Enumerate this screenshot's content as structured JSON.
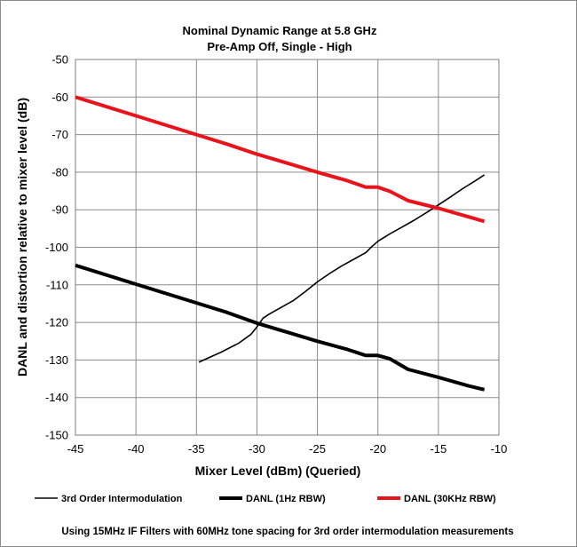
{
  "chart_data": {
    "type": "line",
    "title": "Nominal Dynamic Range at 5.8 GHz",
    "subtitle": "Pre-Amp Off, Single - High",
    "xlabel": "Mixer Level (dBm) (Queried)",
    "ylabel": "DANL and distortion relative to mixer level (dB)",
    "xlim": [
      -45,
      -10
    ],
    "ylim": [
      -150,
      -50
    ],
    "xticks": [
      -45,
      -40,
      -35,
      -30,
      -25,
      -20,
      -15,
      -10
    ],
    "yticks": [
      -50,
      -60,
      -70,
      -80,
      -90,
      -100,
      -110,
      -120,
      -130,
      -140,
      -150
    ],
    "grid": true,
    "legend_position": "bottom",
    "series": [
      {
        "name": "3rd Order Intermodulation",
        "color": "#000000",
        "line_weight": "thin",
        "x": [
          -34.8,
          -33,
          -31.5,
          -30.5,
          -30,
          -29.5,
          -29,
          -28,
          -27,
          -26,
          -25,
          -24,
          -23,
          -22,
          -21,
          -20.5,
          -20,
          -19,
          -18,
          -17,
          -16,
          -15,
          -14,
          -13,
          -12,
          -11.2
        ],
        "y": [
          -130.6,
          -128.0,
          -125.5,
          -123.2,
          -121.2,
          -118.9,
          -117.8,
          -116.0,
          -114.2,
          -111.8,
          -109.2,
          -107.0,
          -105.0,
          -103.2,
          -101.4,
          -99.8,
          -98.4,
          -96.4,
          -94.6,
          -92.8,
          -90.8,
          -88.7,
          -86.6,
          -84.4,
          -82.4,
          -80.7
        ]
      },
      {
        "name": "DANL (1Hz RBW)",
        "color": "#000000",
        "line_weight": "thick",
        "x": [
          -45,
          -40,
          -35,
          -32.5,
          -30,
          -27.5,
          -25,
          -22.5,
          -21,
          -20,
          -19,
          -17.5,
          -15,
          -12.5,
          -11.2
        ],
        "y": [
          -104.8,
          -109.8,
          -114.8,
          -117.3,
          -120.2,
          -122.6,
          -125.0,
          -127.2,
          -128.8,
          -128.8,
          -129.7,
          -132.5,
          -134.6,
          -136.9,
          -137.9
        ]
      },
      {
        "name": "DANL (30KHz RBW)",
        "color": "#e8131b",
        "line_weight": "thick",
        "x": [
          -45,
          -40,
          -35,
          -32.5,
          -30,
          -27.5,
          -25,
          -22.5,
          -21,
          -20,
          -19,
          -17.5,
          -15,
          -12.5,
          -11.2
        ],
        "y": [
          -60.0,
          -65.0,
          -70.0,
          -72.5,
          -75.2,
          -77.6,
          -80.0,
          -82.3,
          -84.0,
          -84.0,
          -85.1,
          -87.6,
          -89.6,
          -91.9,
          -93.1
        ]
      }
    ]
  },
  "footnote": "Using 15MHz IF Filters with 60MHz tone spacing for 3rd order intermodulation measurements"
}
